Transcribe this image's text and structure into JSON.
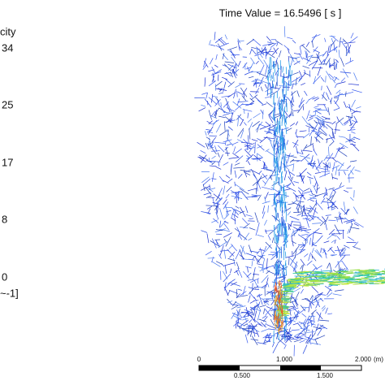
{
  "title": "Time Value = 16.5496 [ s ]",
  "legend": {
    "title": "city",
    "ticks": [
      "34",
      "25",
      "17",
      "8",
      "0"
    ],
    "unit": "~-1]"
  },
  "scale_bar": {
    "top_labels": [
      "0",
      "1.000",
      "2.000"
    ],
    "unit": "(m)",
    "bottom_labels": [
      "0.500",
      "1.500"
    ]
  }
}
